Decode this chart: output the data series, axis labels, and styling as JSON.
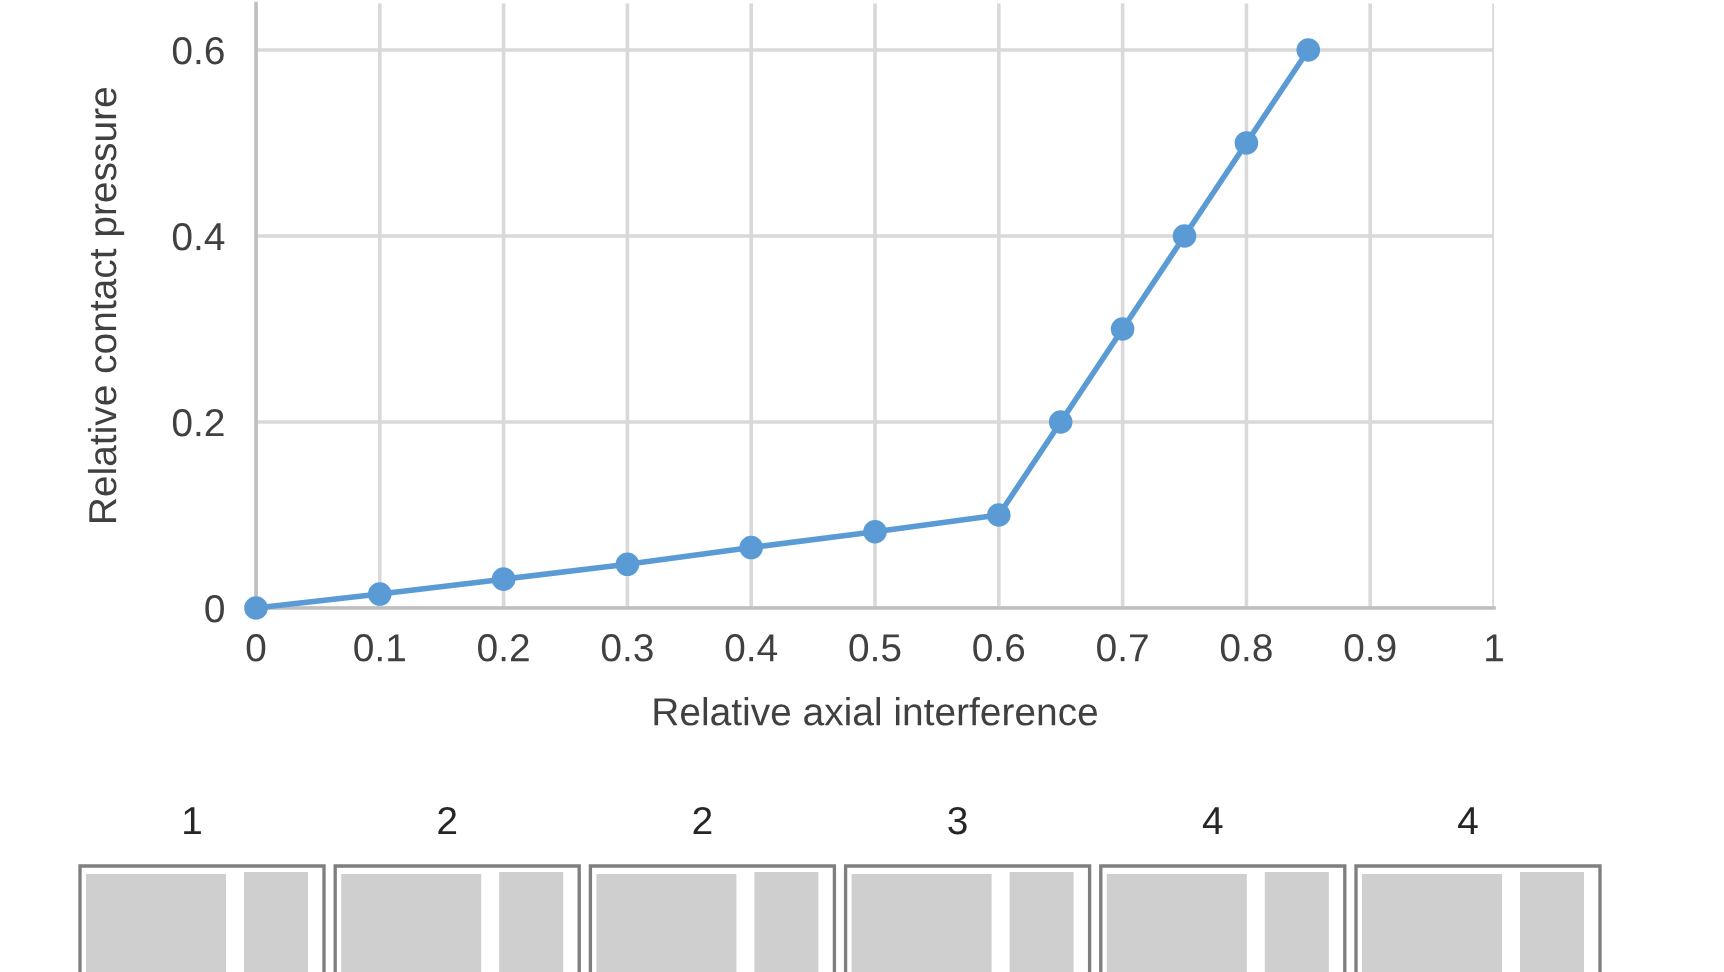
{
  "chart_data": {
    "type": "line",
    "xlabel": "Relative axial interference",
    "ylabel": "Relative contact pressure",
    "x": [
      0,
      0.1,
      0.2,
      0.3,
      0.4,
      0.5,
      0.6,
      0.65,
      0.7,
      0.75,
      0.8,
      0.85
    ],
    "series": [
      {
        "color": "#5b9bd5",
        "values": [
          0,
          0.015,
          0.031,
          0.047,
          0.065,
          0.082,
          0.1,
          0.2,
          0.3,
          0.4,
          0.5,
          0.6
        ]
      }
    ],
    "xlim": [
      0,
      1
    ],
    "xticks": [
      0,
      0.1,
      0.2,
      0.3,
      0.4,
      0.5,
      0.6,
      0.7,
      0.8,
      0.9,
      1
    ],
    "ylim": [
      0,
      0.65
    ],
    "yticks": [
      0,
      0.2,
      0.4,
      0.6
    ],
    "grid": true,
    "marker": "circle",
    "line_style": "solid",
    "annotations": [
      "1",
      "2",
      "2",
      "3",
      "4",
      "4"
    ]
  }
}
